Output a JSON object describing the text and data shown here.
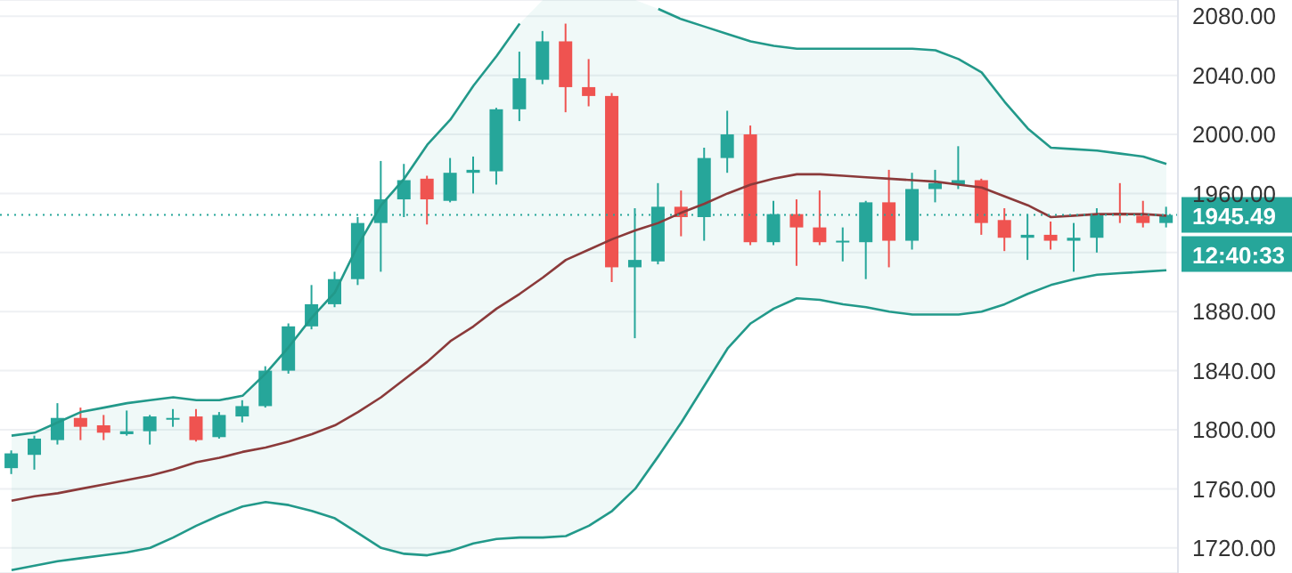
{
  "chart_data": {
    "type": "candlestick",
    "categories": [
      null,
      null,
      null,
      null,
      null,
      null,
      null,
      null,
      null,
      null,
      null,
      null,
      null,
      null,
      null,
      null,
      null,
      null,
      null,
      null,
      null,
      null,
      null,
      null,
      null,
      null,
      null,
      null,
      null,
      null,
      null,
      null,
      null,
      null,
      null,
      null,
      null,
      null,
      null,
      null,
      null,
      null,
      null,
      null,
      null,
      null,
      null,
      null,
      null,
      null,
      null
    ],
    "ohlc": [
      [
        1774,
        1786,
        1770,
        1784
      ],
      [
        1783,
        1796,
        1773,
        1794
      ],
      [
        1793,
        1818,
        1790,
        1808
      ],
      [
        1808,
        1815,
        1793,
        1802
      ],
      [
        1803,
        1810,
        1793,
        1798
      ],
      [
        1797,
        1813,
        1796,
        1799
      ],
      [
        1799,
        1810,
        1790,
        1809
      ],
      [
        1807,
        1814,
        1802,
        1808
      ],
      [
        1809,
        1814,
        1792,
        1793
      ],
      [
        1795,
        1812,
        1794,
        1810
      ],
      [
        1809,
        1820,
        1805,
        1816
      ],
      [
        1816,
        1843,
        1815,
        1840
      ],
      [
        1840,
        1872,
        1838,
        1870
      ],
      [
        1870,
        1898,
        1868,
        1885
      ],
      [
        1885,
        1907,
        1883,
        1902
      ],
      [
        1902,
        1944,
        1898,
        1940
      ],
      [
        1940,
        1982,
        1907,
        1956
      ],
      [
        1956,
        1980,
        1944,
        1969
      ],
      [
        1970,
        1972,
        1939,
        1956
      ],
      [
        1955,
        1984,
        1954,
        1974
      ],
      [
        1974,
        1985,
        1960,
        1976
      ],
      [
        1975,
        2018,
        1966,
        2017
      ],
      [
        2017,
        2056,
        2009,
        2038
      ],
      [
        2037,
        2070,
        2034,
        2063
      ],
      [
        2063,
        2075,
        2015,
        2032
      ],
      [
        2032,
        2051,
        2019,
        2026
      ],
      [
        2026,
        2028,
        1900,
        1910
      ],
      [
        1910,
        1950,
        1862,
        1915
      ],
      [
        1914,
        1967,
        1912,
        1951
      ],
      [
        1951,
        1962,
        1931,
        1944
      ],
      [
        1944,
        1991,
        1928,
        1984
      ],
      [
        1984,
        2016,
        1974,
        2000
      ],
      [
        2000,
        2006,
        1925,
        1927
      ],
      [
        1927,
        1955,
        1925,
        1946
      ],
      [
        1946,
        1956,
        1911,
        1937
      ],
      [
        1937,
        1962,
        1925,
        1927
      ],
      [
        1927,
        1937,
        1914,
        1928
      ],
      [
        1927,
        1955,
        1902,
        1954
      ],
      [
        1954,
        1976,
        1910,
        1928
      ],
      [
        1928,
        1974,
        1922,
        1963
      ],
      [
        1963,
        1976,
        1954,
        1967
      ],
      [
        1966,
        1992,
        1963,
        1969
      ],
      [
        1969,
        1970,
        1932,
        1940
      ],
      [
        1942,
        1950,
        1921,
        1930
      ],
      [
        1930,
        1946,
        1915,
        1932
      ],
      [
        1932,
        1941,
        1922,
        1928
      ],
      [
        1928,
        1940,
        1907,
        1930
      ],
      [
        1930,
        1950,
        1920,
        1946
      ],
      [
        1947,
        1967,
        1940,
        1945
      ],
      [
        1945,
        1955,
        1937,
        1940
      ],
      [
        1940,
        1951,
        1937,
        1945.49
      ]
    ],
    "colors": [
      "#26a69a",
      "#26a69a",
      "#26a69a",
      "#ef5350",
      "#ef5350",
      "#26a69a",
      "#26a69a",
      "#26a69a",
      "#ef5350",
      "#26a69a",
      "#26a69a",
      "#26a69a",
      "#26a69a",
      "#26a69a",
      "#26a69a",
      "#26a69a",
      "#26a69a",
      "#26a69a",
      "#ef5350",
      "#26a69a",
      "#26a69a",
      "#26a69a",
      "#26a69a",
      "#26a69a",
      "#ef5350",
      "#ef5350",
      "#ef5350",
      "#26a69a",
      "#26a69a",
      "#ef5350",
      "#26a69a",
      "#26a69a",
      "#ef5350",
      "#26a69a",
      "#ef5350",
      "#ef5350",
      "#26a69a",
      "#26a69a",
      "#ef5350",
      "#26a69a",
      "#26a69a",
      "#26a69a",
      "#ef5350",
      "#ef5350",
      "#26a69a",
      "#ef5350",
      "#26a69a",
      "#26a69a",
      "#ef5350",
      "#ef5350",
      "#26a69a"
    ],
    "series": [
      {
        "type": "line",
        "color": "#22998a",
        "values": [
          1796,
          1798,
          1805,
          1812,
          1815,
          1818,
          1820,
          1822,
          1820,
          1820,
          1823,
          1838,
          1856,
          1876,
          1893,
          1925,
          1952,
          1970,
          1993,
          2010,
          2033,
          2053,
          2075,
          null,
          null,
          null,
          null,
          null,
          2085,
          2078,
          2073,
          2068,
          2063,
          2060,
          2058,
          2058,
          2058,
          2058,
          2058,
          2058,
          2057,
          2051,
          2042,
          2022,
          2004,
          1991,
          1990,
          1989,
          1987,
          1985,
          1980
        ]
      },
      {
        "type": "line",
        "color": "#8b3a3a",
        "upper": [
          1796,
          1798,
          1805,
          1812,
          1815,
          1818,
          1820,
          1822,
          1820,
          1820,
          1823,
          1838,
          1856,
          1876,
          1893,
          1925,
          1952,
          1970,
          1993,
          2010,
          2033,
          2053,
          2075,
          2091,
          2091,
          2091,
          2091,
          2091,
          2085,
          2078,
          2073,
          2068,
          2063,
          2060,
          2058,
          2058,
          2058,
          2058,
          2058,
          2058,
          2057,
          2051,
          2042,
          2022,
          2004,
          1991,
          1990,
          1989,
          1987,
          1985,
          1980
        ],
        "lower": [
          1705,
          1708,
          1711,
          1713,
          1715,
          1717,
          1720,
          1727,
          1735,
          1742,
          1748,
          1751,
          1749,
          1745,
          1740,
          1730,
          1720,
          1716,
          1715,
          1718,
          1723,
          1726,
          1727,
          1727,
          1728,
          1735,
          1745,
          1760,
          1782,
          1805,
          1830,
          1855,
          1872,
          1882,
          1889,
          1888,
          1885,
          1883,
          1880,
          1878,
          1878,
          1878,
          1880,
          1885,
          1892,
          1898,
          1902,
          1905,
          1906,
          1907,
          1908
        ],
        "values": [
          1752,
          1755,
          1757,
          1760,
          1763,
          1766,
          1769,
          1773,
          1778,
          1781,
          1785,
          1788,
          1792,
          1797,
          1803,
          1812,
          1822,
          1834,
          1846,
          1860,
          1870,
          1882,
          1892,
          1903,
          1915,
          1922,
          1929,
          1935,
          1940,
          1947,
          1953,
          1960,
          1966,
          1970,
          1973,
          1973,
          1972,
          1971,
          1970,
          1969,
          1968,
          1966,
          1964,
          1958,
          1952,
          1944,
          1945,
          1946,
          1946,
          1946,
          1945
        ]
      },
      {
        "type": "line",
        "color": "#22998a",
        "values": [
          1705,
          1708,
          1711,
          1713,
          1715,
          1717,
          1720,
          1727,
          1735,
          1742,
          1748,
          1751,
          1749,
          1745,
          1740,
          1730,
          1720,
          1716,
          1715,
          1718,
          1723,
          1726,
          1727,
          1727,
          1728,
          1735,
          1745,
          1760,
          1782,
          1805,
          1830,
          1855,
          1872,
          1882,
          1889,
          1888,
          1885,
          1883,
          1880,
          1878,
          1878,
          1878,
          1880,
          1885,
          1892,
          1898,
          1902,
          1905,
          1906,
          1907,
          1908
        ]
      }
    ],
    "ylim": [
      1703,
      2091
    ],
    "yticks": [
      {
        "value": 1720,
        "label": "1720.00"
      },
      {
        "value": 1760,
        "label": "1760.00"
      },
      {
        "value": 1800,
        "label": "1800.00"
      },
      {
        "value": 1840,
        "label": "1840.00"
      },
      {
        "value": 1880,
        "label": "1880.00"
      },
      {
        "value": 1920,
        "label": null
      },
      {
        "value": 1960,
        "label": "1960.00"
      },
      {
        "value": 2000,
        "label": "2000.00"
      },
      {
        "value": 2040,
        "label": "2040.00"
      },
      {
        "value": 2080,
        "label": "2080.00"
      }
    ],
    "grid": "y",
    "tick_labels": "y",
    "ref_lines": [
      {
        "axis": "y",
        "value": 1945.49,
        "label": "1945.49",
        "color": "#26a69a",
        "line_style": "dotted"
      }
    ],
    "annotations": [
      "12:40:33"
    ]
  }
}
